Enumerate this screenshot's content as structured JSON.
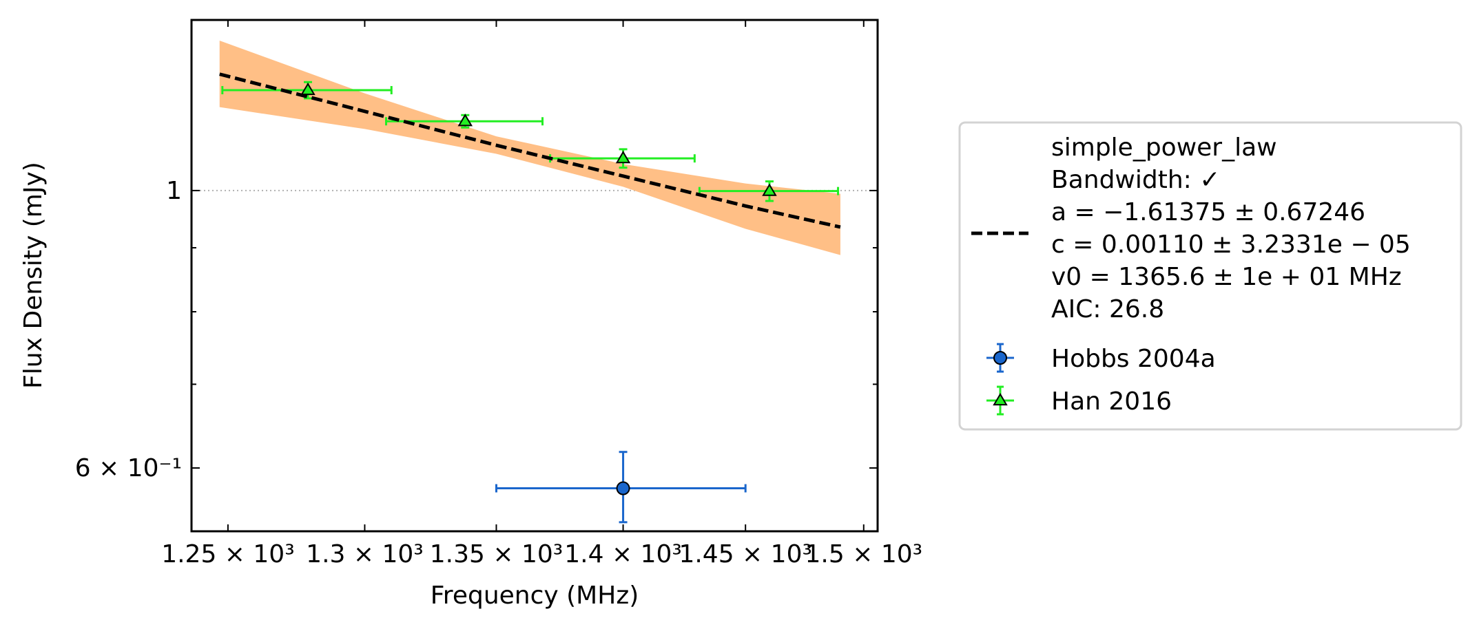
{
  "chart_data": {
    "type": "scatter",
    "xlabel": "Frequency (MHz)",
    "ylabel": "Flux Density (mJy)",
    "xscale": "log",
    "yscale": "log",
    "xlim": [
      1237,
      1506
    ],
    "ylim": [
      0.534,
      1.369
    ],
    "x_ticks": [
      {
        "value": 1250,
        "label": "1.25 × 10³"
      },
      {
        "value": 1300,
        "label": "1.3 × 10³"
      },
      {
        "value": 1350,
        "label": "1.35 × 10³"
      },
      {
        "value": 1400,
        "label": "1.4 × 10³"
      },
      {
        "value": 1450,
        "label": "1.45 × 10³"
      },
      {
        "value": 1500,
        "label": "1.5 × 10³"
      }
    ],
    "y_major_ticks": [
      {
        "value": 1.0,
        "label": "1"
      },
      {
        "value": 0.6,
        "label": "6 × 10⁻¹"
      }
    ],
    "y_minor_ticks": [
      0.7,
      0.8,
      0.9
    ],
    "reference_line": {
      "y": 1.0,
      "style": "dotted",
      "color": "#b0b0b0"
    },
    "fit": {
      "name": "simple_power_law",
      "legend_lines": [
        "simple_power_law",
        "Bandwidth: ✓",
        "a = −1.61375 ± 0.67246",
        "c = 0.00110 ± 3.2331e − 05",
        "v0 = 1365.6 ± 1e + 01 MHz",
        "AIC: 26.8"
      ],
      "line_color": "#000000",
      "band_color": "#ffbf86",
      "x": [
        1247,
        1300,
        1350,
        1400,
        1450,
        1490
      ],
      "y": [
        1.239,
        1.157,
        1.087,
        1.027,
        0.972,
        0.935
      ],
      "band_lower": [
        1.166,
        1.12,
        1.07,
        1.007,
        0.932,
        0.888
      ],
      "band_upper": [
        1.318,
        1.196,
        1.105,
        1.05,
        1.013,
        0.994
      ]
    },
    "series": [
      {
        "name": "Hobbs 2004a",
        "marker": "circle",
        "color": "#1a66cc",
        "points": [
          {
            "x": 1400,
            "y": 0.578,
            "xerr_low": 50,
            "xerr_high": 50,
            "yerr_low": 0.035,
            "yerr_high": 0.04
          }
        ]
      },
      {
        "name": "Han 2016",
        "marker": "triangle",
        "color": "#22ee22",
        "points": [
          {
            "x": 1279,
            "y": 1.203,
            "xerr_low": 31,
            "xerr_high": 31,
            "yerr_low": 0.018,
            "yerr_high": 0.018
          },
          {
            "x": 1338,
            "y": 1.136,
            "xerr_low": 30,
            "xerr_high": 30,
            "yerr_low": 0.013,
            "yerr_high": 0.013
          },
          {
            "x": 1400,
            "y": 1.061,
            "xerr_low": 29,
            "xerr_high": 29,
            "yerr_low": 0.018,
            "yerr_high": 0.018
          },
          {
            "x": 1460,
            "y": 0.999,
            "xerr_low": 29,
            "xerr_high": 29,
            "yerr_low": 0.018,
            "yerr_high": 0.018
          }
        ]
      }
    ]
  }
}
